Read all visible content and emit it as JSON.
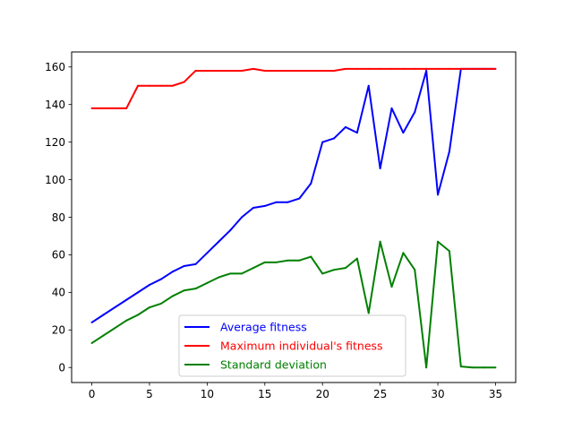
{
  "chart_data": {
    "type": "line",
    "title": "",
    "xlabel": "",
    "ylabel": "",
    "xlim": [
      -1.75,
      36.75
    ],
    "ylim": [
      -8,
      168
    ],
    "x_ticks": [
      "0",
      "5",
      "10",
      "15",
      "20",
      "25",
      "30",
      "35"
    ],
    "y_ticks": [
      "0",
      "20",
      "40",
      "60",
      "80",
      "100",
      "120",
      "140",
      "160"
    ],
    "grid": false,
    "legend_position": "lower center",
    "x": [
      0,
      1,
      2,
      3,
      4,
      5,
      6,
      7,
      8,
      9,
      10,
      11,
      12,
      13,
      14,
      15,
      16,
      17,
      18,
      19,
      20,
      21,
      22,
      23,
      24,
      25,
      26,
      27,
      28,
      29,
      30,
      31,
      32,
      33,
      34,
      35
    ],
    "series": [
      {
        "name": "Average fitness",
        "color": "#0000ff",
        "values": [
          24,
          28,
          32,
          36,
          40,
          44,
          47,
          51,
          54,
          55,
          61,
          67,
          73,
          80,
          85,
          86,
          88,
          88,
          90,
          98,
          120,
          122,
          128,
          125,
          150,
          106,
          138,
          125,
          136,
          158,
          92,
          115,
          159,
          159,
          159,
          159
        ]
      },
      {
        "name": "Maximum individual's fitness",
        "color": "#ff0000",
        "values": [
          138,
          138,
          138,
          138,
          150,
          150,
          150,
          150,
          152,
          158,
          158,
          158,
          158,
          158,
          159,
          158,
          158,
          158,
          158,
          158,
          158,
          158,
          159,
          159,
          159,
          159,
          159,
          159,
          159,
          159,
          159,
          159,
          159,
          159,
          159,
          159
        ]
      },
      {
        "name": "Standard deviation",
        "color": "#008000",
        "values": [
          13,
          17,
          21,
          25,
          28,
          32,
          34,
          38,
          41,
          42,
          45,
          48,
          50,
          50,
          53,
          56,
          56,
          57,
          57,
          59,
          50,
          52,
          53,
          58,
          29,
          67,
          43,
          61,
          52,
          0,
          67,
          62,
          0.5,
          0,
          0,
          0
        ]
      }
    ]
  }
}
